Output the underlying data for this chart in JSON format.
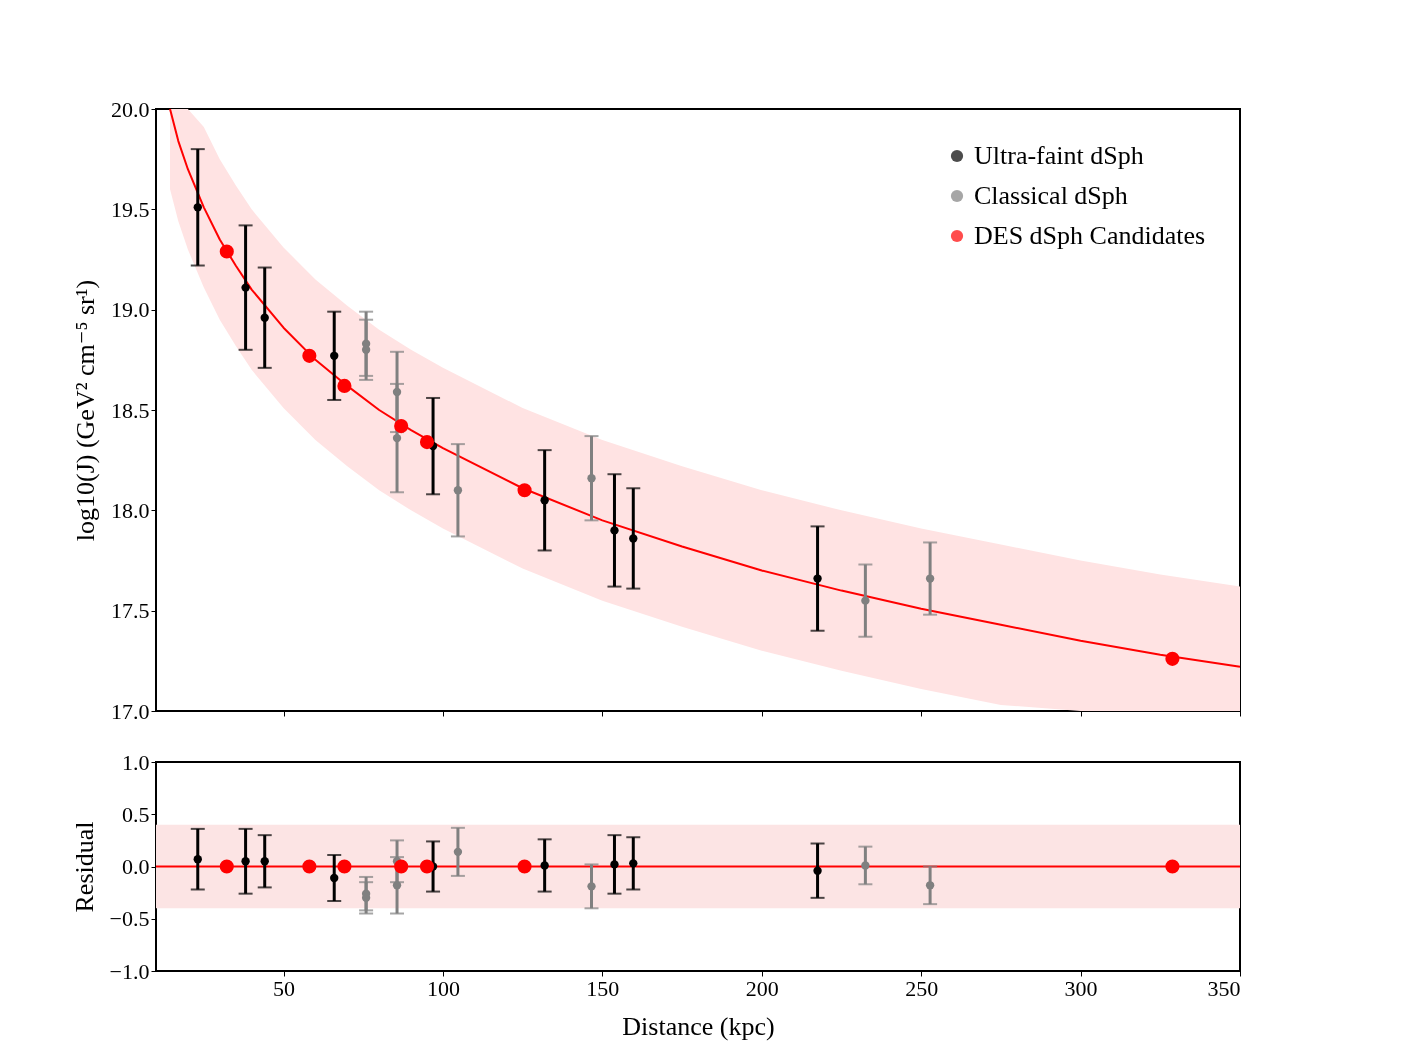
{
  "chart_data": [
    {
      "type": "scatter",
      "ylabel": "log10(J) (GeV² cm⁻⁵ sr¹)",
      "xlim": [
        10,
        350
      ],
      "xticks": [
        50,
        100,
        150,
        200,
        250,
        300,
        350
      ],
      "ylim": [
        17,
        20
      ],
      "yticks": [
        {
          "value": 17,
          "label": "17.0"
        },
        {
          "value": 17.5,
          "label": "17.5"
        },
        {
          "value": 18,
          "label": "18.0"
        },
        {
          "value": 18.5,
          "label": "18.5"
        },
        {
          "value": 19,
          "label": "19.0"
        },
        {
          "value": 19.5,
          "label": "19.5"
        },
        {
          "value": 20,
          "label": "20.0"
        }
      ],
      "tick_labels": "y",
      "legend": "top right",
      "marker": "circle",
      "series": [
        {
          "type": "line",
          "marker": "none",
          "color": "#ff0000",
          "x": [
            14.4,
            17,
            20,
            25,
            30,
            35,
            40,
            50,
            60,
            70,
            80,
            90,
            100,
            125,
            150,
            175,
            200,
            225,
            250,
            275,
            300,
            325,
            350
          ],
          "values": [
            20.0,
            19.84,
            19.7,
            19.51,
            19.35,
            19.22,
            19.1,
            18.91,
            18.75,
            18.62,
            18.5,
            18.4,
            18.31,
            18.11,
            17.95,
            17.82,
            17.7,
            17.6,
            17.51,
            17.43,
            17.35,
            17.28,
            17.22
          ],
          "lower": [
            19.6,
            19.44,
            19.3,
            19.11,
            18.95,
            18.82,
            18.7,
            18.51,
            18.35,
            18.22,
            18.1,
            18.0,
            17.91,
            17.71,
            17.55,
            17.42,
            17.3,
            17.2,
            17.11,
            17.03,
            17.0,
            17.0,
            17.0
          ],
          "upper": [
            20.0,
            20.0,
            20.0,
            19.91,
            19.75,
            19.62,
            19.5,
            19.31,
            19.15,
            19.02,
            18.9,
            18.8,
            18.71,
            18.51,
            18.35,
            18.22,
            18.1,
            18.0,
            17.91,
            17.83,
            17.75,
            17.68,
            17.62
          ]
        },
        {
          "name": "Ultra-faint dSph",
          "color": "#000000",
          "x": [
            23.1,
            38.1,
            44.1,
            65.9,
            96.9,
            131.9,
            153.8,
            159.7,
            217.5
          ],
          "values": [
            19.51,
            19.11,
            18.96,
            18.77,
            18.32,
            18.05,
            17.9,
            17.86,
            17.66
          ],
          "errors": [
            0.29,
            0.31,
            0.25,
            0.22,
            0.24,
            0.25,
            0.28,
            0.25,
            0.26
          ]
        },
        {
          "name": "Classical dSph",
          "color": "#808080",
          "x": [
            75.9,
            75.9,
            85.6,
            85.6,
            104.7,
            146.6,
            232.5,
            252.8
          ],
          "values": [
            18.83,
            18.8,
            18.59,
            18.36,
            18.1,
            18.16,
            17.55,
            17.66
          ],
          "errors": [
            0.16,
            0.15,
            0.2,
            0.27,
            0.23,
            0.21,
            0.18,
            0.18
          ]
        },
        {
          "name": "DES dSph Candidates",
          "color": "#ff0000",
          "x": [
            32.2,
            58.1,
            69.1,
            86.9,
            95.0,
            125.6,
            328.8
          ],
          "values": [
            19.29,
            18.77,
            18.62,
            18.42,
            18.34,
            18.1,
            17.26
          ]
        }
      ]
    },
    {
      "type": "scatter",
      "xlabel": "Distance (kpc)",
      "ylabel": "Residual",
      "xlim": [
        10,
        350
      ],
      "xticks": [
        50,
        100,
        150,
        200,
        250,
        300,
        350
      ],
      "ylim": [
        -1,
        1
      ],
      "yticks": [
        {
          "value": -1,
          "label": "−1.0"
        },
        {
          "value": -0.5,
          "label": "−0.5"
        },
        {
          "value": 0,
          "label": "0.0"
        },
        {
          "value": 0.5,
          "label": "0.5"
        },
        {
          "value": 1,
          "label": "1.0"
        }
      ],
      "marker": "circle",
      "bands": [
        {
          "axis": "y",
          "from": -0.4,
          "to": 0.4,
          "color": "#fce4e4"
        }
      ],
      "ref_lines": [
        {
          "axis": "y",
          "value": 0,
          "color": "#ff0000"
        }
      ],
      "series": [
        {
          "color": "#000000",
          "x": [
            23.1,
            38.1,
            44.1,
            65.9,
            96.9,
            131.9,
            153.8,
            159.7,
            217.5
          ],
          "values": [
            0.07,
            0.05,
            0.05,
            -0.11,
            0.0,
            0.01,
            0.02,
            0.03,
            -0.04
          ],
          "errors": [
            0.29,
            0.31,
            0.25,
            0.22,
            0.24,
            0.25,
            0.28,
            0.25,
            0.26
          ]
        },
        {
          "color": "#808080",
          "x": [
            75.9,
            75.9,
            85.6,
            85.6,
            104.7,
            146.6,
            232.5,
            252.8
          ],
          "values": [
            -0.26,
            -0.3,
            0.05,
            -0.18,
            0.14,
            -0.19,
            0.01,
            -0.18
          ],
          "errors": [
            0.16,
            0.15,
            0.2,
            0.27,
            0.23,
            0.21,
            0.18,
            0.18
          ]
        },
        {
          "color": "#ff0000",
          "x": [
            32.2,
            58.1,
            69.1,
            86.9,
            95.0,
            125.6,
            328.8
          ],
          "values": [
            0,
            0,
            0,
            0,
            0,
            0,
            0
          ]
        }
      ]
    }
  ]
}
